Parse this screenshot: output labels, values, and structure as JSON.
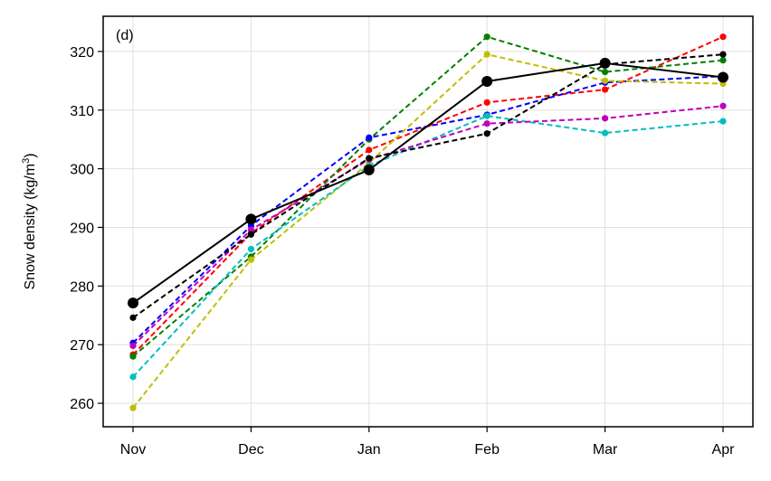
{
  "chart_data": {
    "type": "line",
    "panel_label": "(d)",
    "xlabel": "",
    "ylabel_main": "Snow density (kg/m",
    "ylabel_sup": "3",
    "ylabel_close": ")",
    "categories": [
      "Nov",
      "Dec",
      "Jan",
      "Feb",
      "Mar",
      "Apr"
    ],
    "ylim": [
      256,
      326
    ],
    "yticks": [
      260,
      270,
      280,
      290,
      300,
      310,
      320
    ],
    "grid": true,
    "series": [
      {
        "color": "#ff0000",
        "style": "dashed",
        "marker_size": "small",
        "values": [
          268.3,
          289.0,
          303.2,
          311.3,
          313.5,
          322.5
        ]
      },
      {
        "color": "#008000",
        "style": "dashed",
        "marker_size": "small",
        "values": [
          268.0,
          285.0,
          305.0,
          322.5,
          316.5,
          318.5
        ]
      },
      {
        "color": "#0000ff",
        "style": "dashed",
        "marker_size": "small",
        "values": [
          270.3,
          290.3,
          305.3,
          309.2,
          314.7,
          315.8
        ]
      },
      {
        "color": "#bfbf00",
        "style": "dashed",
        "marker_size": "small",
        "values": [
          259.2,
          284.5,
          301.0,
          319.5,
          315.0,
          314.5
        ]
      },
      {
        "color": "#00bfbf",
        "style": "dashed",
        "marker_size": "small",
        "values": [
          264.5,
          286.3,
          300.5,
          309.0,
          306.1,
          308.1
        ]
      },
      {
        "color": "#bf00bf",
        "style": "dashed",
        "marker_size": "small",
        "values": [
          269.8,
          289.6,
          301.6,
          307.7,
          308.6,
          310.7
        ]
      },
      {
        "color": "#000000",
        "style": "dashed",
        "marker_size": "small",
        "values": [
          274.6,
          288.8,
          301.8,
          306.0,
          317.8,
          319.5
        ]
      },
      {
        "color": "#000000",
        "style": "solid",
        "marker_size": "large",
        "values": [
          277.1,
          291.4,
          299.8,
          314.9,
          318.0,
          315.6
        ]
      }
    ]
  }
}
